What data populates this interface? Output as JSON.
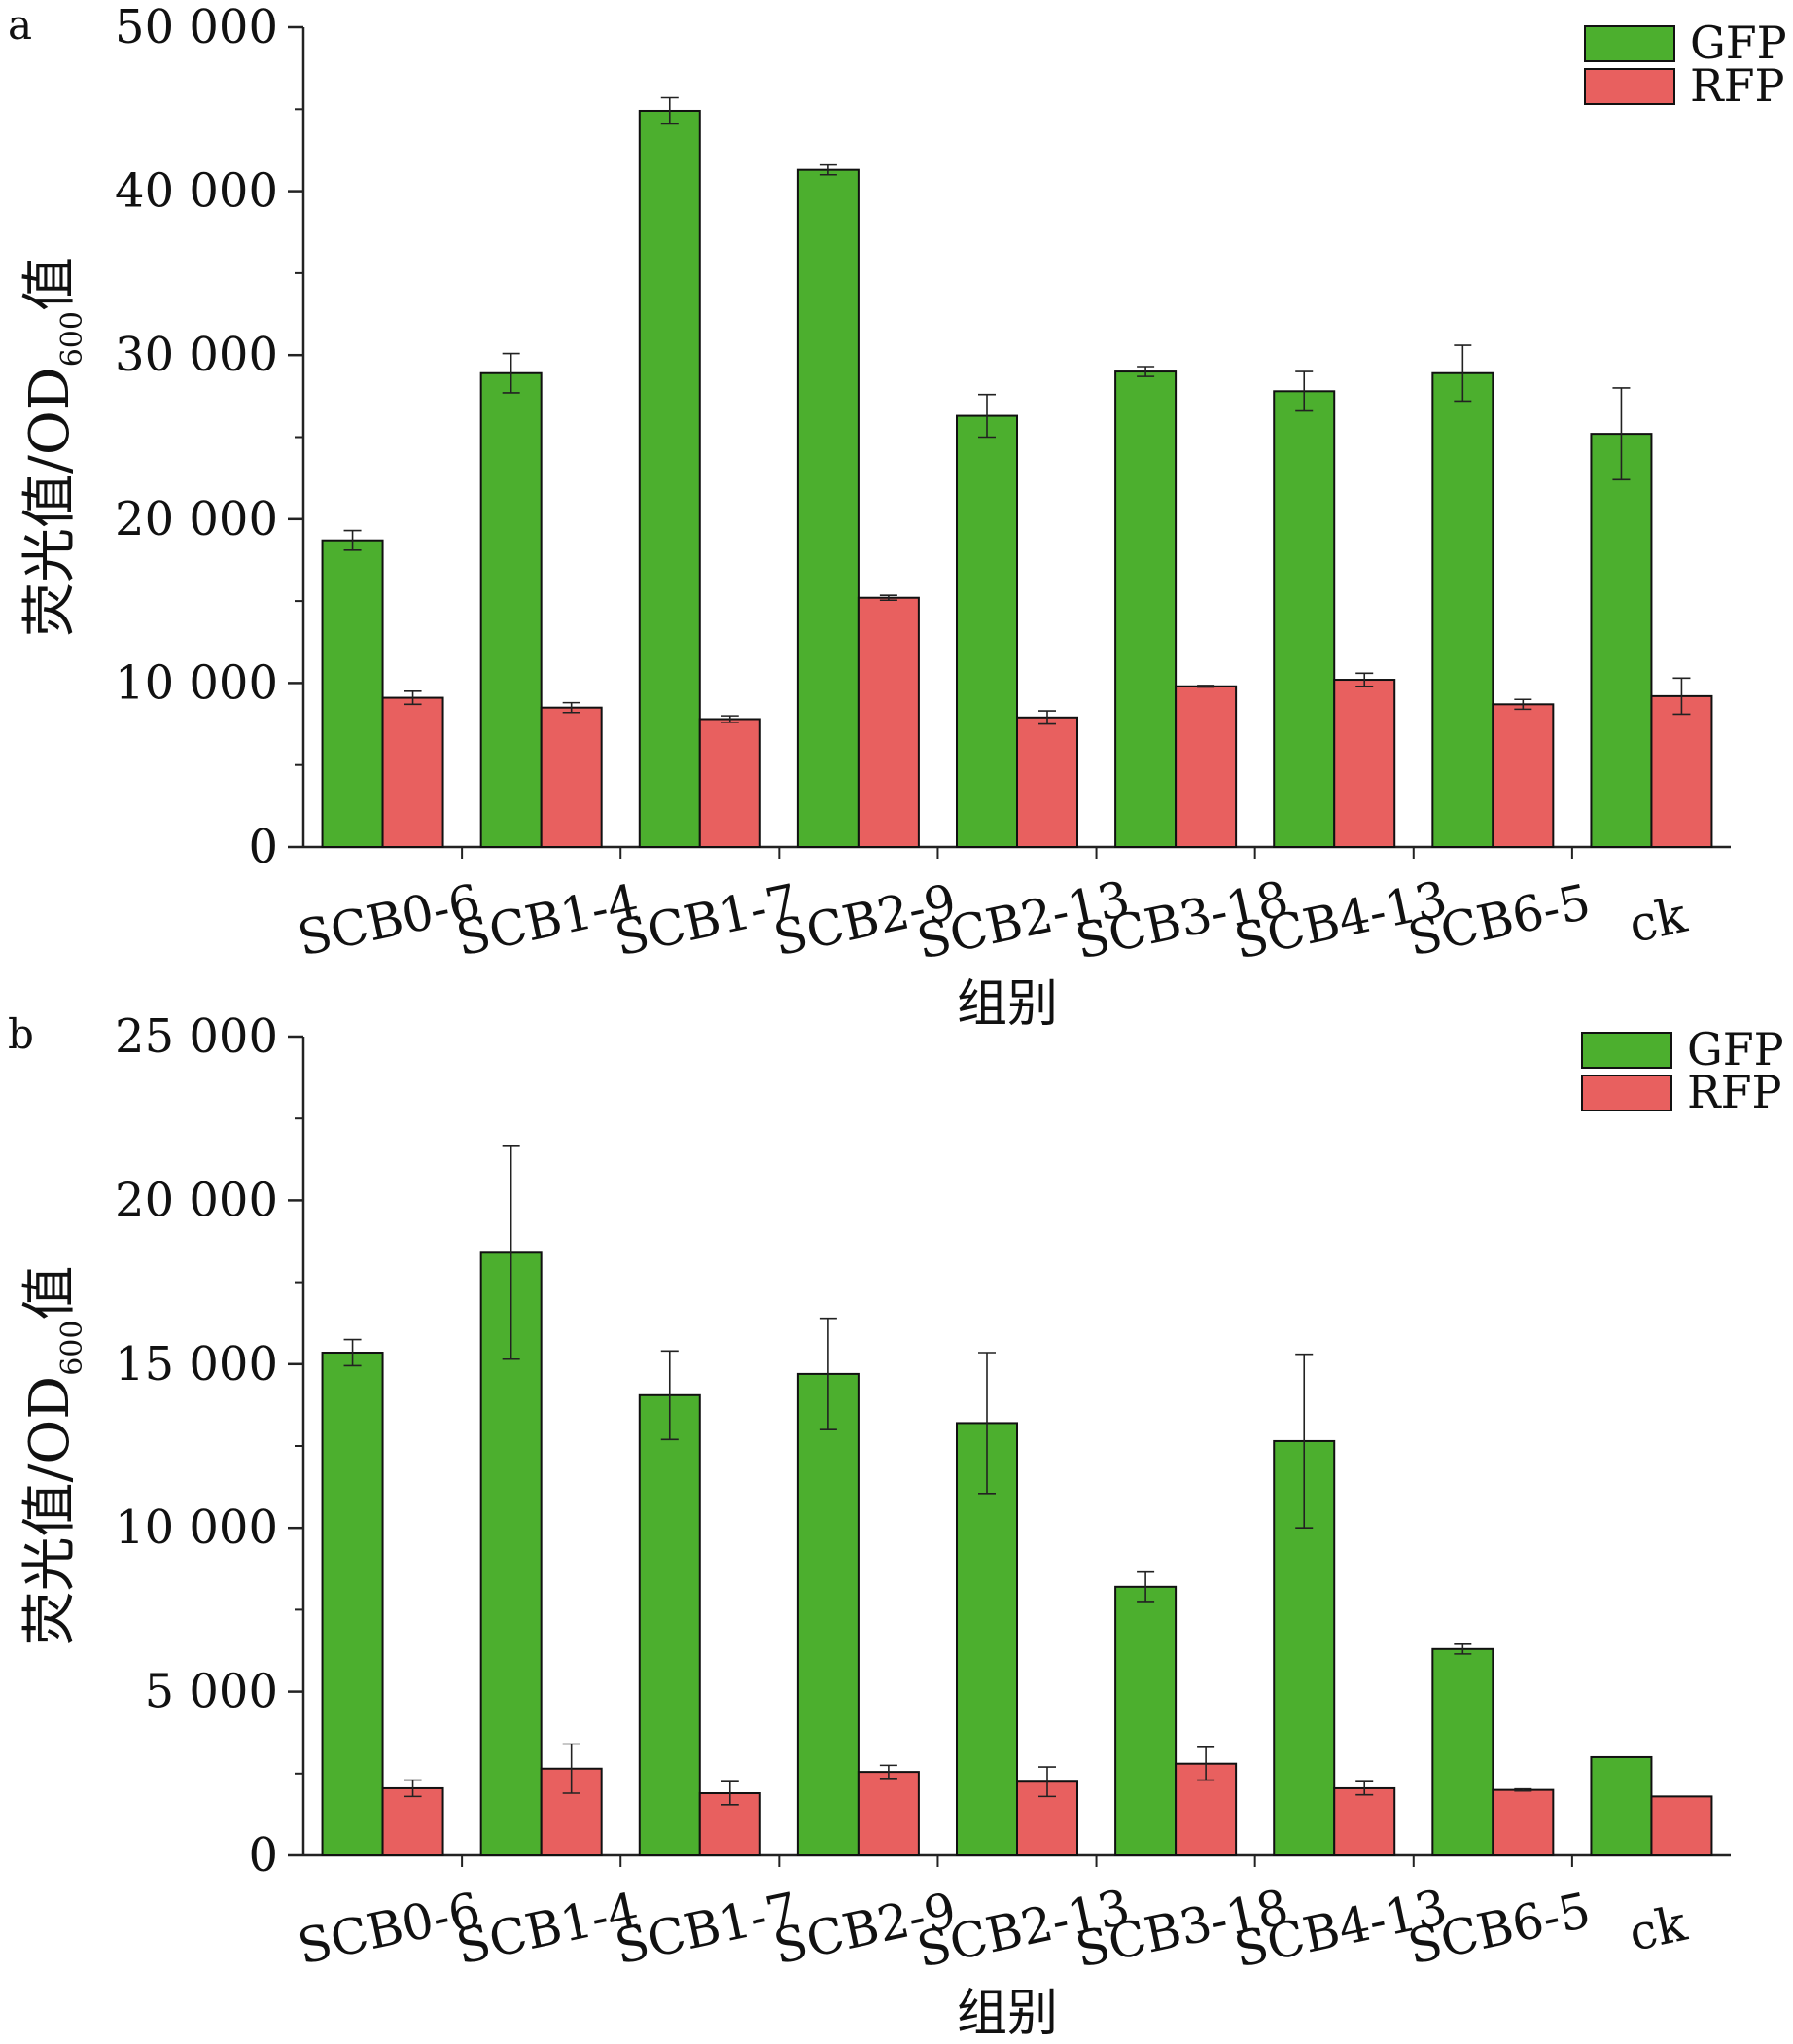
{
  "chart_data": [
    {
      "panel_label": "a",
      "type": "bar",
      "categories": [
        "SCB0-6",
        "SCB1-4",
        "SCB1-7",
        "SCB2-9",
        "SCB2-13",
        "SCB3-18",
        "SCB4-13",
        "SCB6-5",
        "ck"
      ],
      "series": [
        {
          "name": "GFP",
          "color": "#4caf2e",
          "values": [
            18700,
            28900,
            44900,
            41300,
            26300,
            29000,
            27800,
            28900,
            25200
          ],
          "errors": [
            600,
            1200,
            800,
            300,
            1300,
            300,
            1200,
            1700,
            2800
          ]
        },
        {
          "name": "RFP",
          "color": "#e8605f",
          "values": [
            9100,
            8500,
            7800,
            15200,
            7900,
            9800,
            10200,
            8700,
            9200
          ],
          "errors": [
            400,
            300,
            200,
            150,
            400,
            50,
            400,
            300,
            1100
          ]
        }
      ],
      "ylabel_main": "荧光值/OD",
      "ylabel_sub": "600",
      "ylabel_suffix": "值",
      "xlabel": "组别",
      "ylim": [
        0,
        50000
      ],
      "yticks": [
        0,
        10000,
        20000,
        30000,
        40000,
        50000
      ],
      "ytick_labels": [
        "0",
        "10 000",
        "20 000",
        "30 000",
        "40 000",
        "50 000"
      ],
      "legend_position": "top-right",
      "grid": false
    },
    {
      "panel_label": "b",
      "type": "bar",
      "categories": [
        "SCB0-6",
        "SCB1-4",
        "SCB1-7",
        "SCB2-9",
        "SCB2-13",
        "SCB3-18",
        "SCB4-13",
        "SCB6-5",
        "ck"
      ],
      "series": [
        {
          "name": "GFP",
          "color": "#4caf2e",
          "values": [
            15350,
            18400,
            14050,
            14700,
            13200,
            8200,
            12650,
            6300,
            3000
          ],
          "errors": [
            400,
            3250,
            1350,
            1700,
            2150,
            450,
            2650,
            150,
            0
          ]
        },
        {
          "name": "RFP",
          "color": "#e8605f",
          "values": [
            2050,
            2650,
            1900,
            2550,
            2250,
            2800,
            2050,
            2000,
            1800
          ],
          "errors": [
            250,
            750,
            350,
            200,
            450,
            500,
            200,
            30,
            0
          ]
        }
      ],
      "ylabel_main": "荧光值/OD",
      "ylabel_sub": "600",
      "ylabel_suffix": "值",
      "xlabel": "组别",
      "ylim": [
        0,
        25000
      ],
      "yticks": [
        0,
        5000,
        10000,
        15000,
        20000,
        25000
      ],
      "ytick_labels": [
        "0",
        "5 000",
        "10 000",
        "15 000",
        "20 000",
        "25 000"
      ],
      "legend_position": "top-right",
      "grid": false
    }
  ]
}
